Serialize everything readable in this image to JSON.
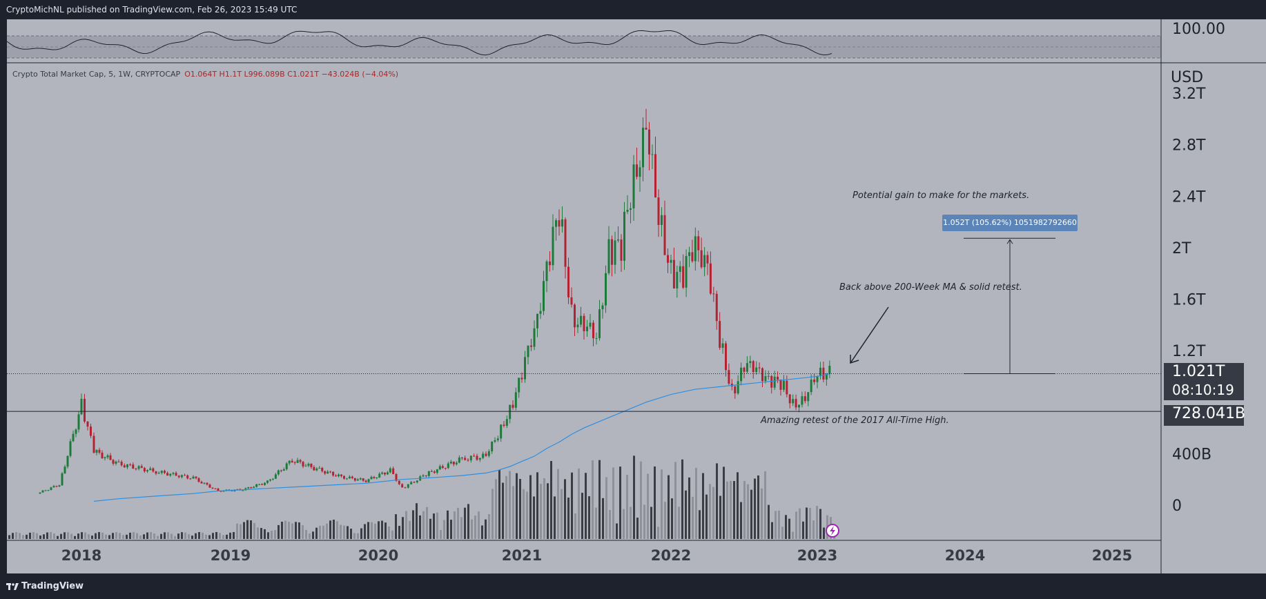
{
  "header": {
    "published": "CryptoMichNL published on TradingView.com, Feb 26, 2023 15:49 UTC"
  },
  "legend": {
    "symbol": "Crypto Total Market Cap, 5, 1W, CRYPTOCAP",
    "ohlc": "O1.064T  H1.1T  L996.089B  C1.021T  −43.024B (−4.04%)"
  },
  "indicator_pane": {
    "axis_label": "100.00"
  },
  "price_axis": {
    "currency": "USD",
    "ticks": [
      "3.2T",
      "2.8T",
      "2.4T",
      "2T",
      "1.6T",
      "1.2T",
      "400B",
      "0"
    ],
    "current_price": "1.021T",
    "countdown": "08:10:19",
    "horizontal_level": "728.041B"
  },
  "time_axis": {
    "ticks": [
      "2018",
      "2019",
      "2020",
      "2021",
      "2022",
      "2023",
      "2024",
      "2025"
    ]
  },
  "annotations": {
    "potential_gain": "Potential gain to make for the markets.",
    "measure_label": "1.052T (105.62%) 1051982792660",
    "back_above_ma": "Back above 200-Week MA & solid retest.",
    "retest": "Amazing retest of the 2017 All-Time High."
  },
  "footer": {
    "logo_text": "TradingView"
  },
  "colors": {
    "up": "#1e7a3a",
    "down": "#b22232",
    "ma": "#2d8fe0",
    "panel_bg": "#b2b5be",
    "chrome_bg": "#1e222d",
    "callout": "#5b85b8"
  },
  "chart_data": {
    "type": "line",
    "title": "Crypto Total Market Cap, 5, 1W, CRYPTOCAP",
    "x": [
      "2017-07",
      "2017-10",
      "2018-01",
      "2018-02",
      "2018-04",
      "2018-07",
      "2018-10",
      "2018-12",
      "2019-02",
      "2019-04",
      "2019-06",
      "2019-08",
      "2019-10",
      "2019-12",
      "2020-02",
      "2020-03",
      "2020-05",
      "2020-08",
      "2020-10",
      "2020-11",
      "2020-12",
      "2021-01",
      "2021-02",
      "2021-03",
      "2021-04",
      "2021-05",
      "2021-06",
      "2021-07",
      "2021-08",
      "2021-09",
      "2021-10",
      "2021-11",
      "2021-12",
      "2022-01",
      "2022-02",
      "2022-03",
      "2022-04",
      "2022-05",
      "2022-06",
      "2022-07",
      "2022-08",
      "2022-09",
      "2022-10",
      "2022-11",
      "2022-12",
      "2023-01",
      "2023-02"
    ],
    "series": [
      {
        "values": [
          0.09,
          0.16,
          0.78,
          0.42,
          0.32,
          0.26,
          0.21,
          0.11,
          0.12,
          0.18,
          0.35,
          0.28,
          0.22,
          0.19,
          0.27,
          0.13,
          0.24,
          0.36,
          0.38,
          0.55,
          0.74,
          1.0,
          1.4,
          1.8,
          2.3,
          1.5,
          1.35,
          1.35,
          1.95,
          2.0,
          2.6,
          2.85,
          2.3,
          1.8,
          1.75,
          2.1,
          1.8,
          1.3,
          0.88,
          1.05,
          1.1,
          0.95,
          0.95,
          0.8,
          0.8,
          1.05,
          1.021
        ]
      },
      {
        "values": [
          null,
          null,
          null,
          0.03,
          0.05,
          0.07,
          0.09,
          0.11,
          0.12,
          0.13,
          0.14,
          0.15,
          0.16,
          0.17,
          0.19,
          0.2,
          0.21,
          0.23,
          0.25,
          0.27,
          0.3,
          0.34,
          0.38,
          0.44,
          0.49,
          0.55,
          0.6,
          0.64,
          0.68,
          0.72,
          0.76,
          0.8,
          0.83,
          0.86,
          0.88,
          0.9,
          0.91,
          0.92,
          0.93,
          0.94,
          0.95,
          0.96,
          0.97,
          0.98,
          0.99,
          1.0,
          1.02
        ]
      }
    ],
    "ylabel": "USD",
    "ylim": [
      0,
      3.2
    ],
    "y_ticks": [
      "0",
      "400B",
      "1.2T",
      "1.6T",
      "2T",
      "2.4T",
      "2.8T",
      "3.2T"
    ],
    "x_ticks": [
      "2018",
      "2019",
      "2020",
      "2021",
      "2022",
      "2023",
      "2024",
      "2025"
    ],
    "grid": false,
    "horizontal_lines": [
      {
        "value": 0.728,
        "label": "728.041B"
      },
      {
        "value": 1.021,
        "label": "1.021T"
      }
    ],
    "measure": {
      "from": 1.021,
      "to": 2.073,
      "label": "1.052T (105.62%) 1051982792660"
    }
  }
}
